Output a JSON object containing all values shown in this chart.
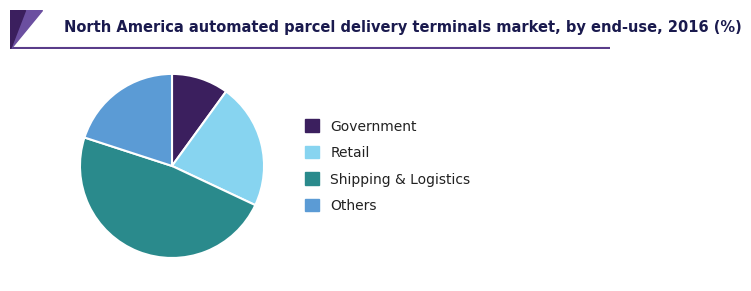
{
  "title": "North America automated parcel delivery terminals market, by end-use, 2016 (%)",
  "labels": [
    "Government",
    "Retail",
    "Shipping & Logistics",
    "Others"
  ],
  "sizes": [
    10,
    22,
    48,
    20
  ],
  "colors": [
    "#3b1f5e",
    "#87d4f0",
    "#2a8a8c",
    "#5b9bd5"
  ],
  "startangle": 90,
  "wedge_edge_color": "white",
  "wedge_edge_width": 1.5,
  "background_color": "#ffffff",
  "title_color": "#1a1a4e",
  "title_fontsize": 10.5,
  "legend_fontsize": 10,
  "legend_text_color": "#222222",
  "header_line_color": "#5a3d8a",
  "header_triangle_color1": "#5a3d8a",
  "header_triangle_color2": "#3b1f5e"
}
